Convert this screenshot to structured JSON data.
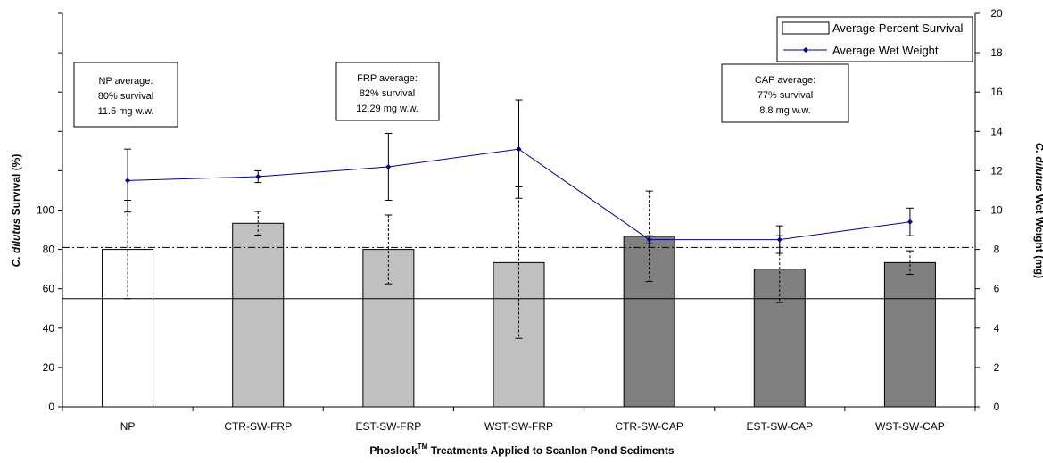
{
  "chart_data": {
    "type": "bar",
    "categories": [
      "NP",
      "CTR-SW-FRP",
      "EST-SW-FRP",
      "WST-SW-FRP",
      "CTR-SW-CAP",
      "EST-SW-CAP",
      "WST-SW-CAP"
    ],
    "bar_colors": [
      "#ffffff",
      "#c0c0c0",
      "#c0c0c0",
      "#c0c0c0",
      "#808080",
      "#808080",
      "#808080"
    ],
    "series": [
      {
        "name": "Average Percent Survival",
        "type": "bar",
        "axis": "left",
        "values": [
          80,
          93.3,
          80,
          73.3,
          86.7,
          70,
          73.3
        ],
        "error": [
          25,
          6,
          17.5,
          38.5,
          23,
          17,
          6
        ]
      },
      {
        "name": "Average Wet Weight",
        "type": "line",
        "axis": "right",
        "color": "#00008b",
        "values": [
          11.5,
          11.7,
          12.2,
          13.1,
          8.5,
          8.5,
          9.4
        ],
        "error": [
          1.6,
          0.3,
          1.7,
          2.5,
          0.2,
          0.7,
          0.7
        ]
      }
    ],
    "reference_lines": [
      {
        "axis": "left",
        "value": 81,
        "style": "dash-dot"
      },
      {
        "axis": "left",
        "value": 55,
        "style": "solid"
      }
    ],
    "x_title_main": "Phoslock",
    "x_title_sup": "TM",
    "x_title_rest": " Treatments Applied to Scanlon Pond Sediments",
    "y_left_title_italic": "C. dilutus",
    "y_left_title_rest": " Survival (%)",
    "y_right_title_italic": "C. dilutus",
    "y_right_title_rest": " Wet Weight (mg)",
    "y_left_range": [
      0,
      200
    ],
    "y_left_ticklabels": [
      "0",
      "20",
      "40",
      "60",
      "80",
      "100"
    ],
    "y_right_range": [
      0,
      20
    ],
    "y_right_ticklabels": [
      "0",
      "2",
      "4",
      "6",
      "8",
      "10",
      "12",
      "14",
      "16",
      "18",
      "20"
    ],
    "legend_position": "top-right",
    "annotations": [
      {
        "title": "NP average:",
        "line1": "80% survival",
        "line2": "11.5 mg w.w."
      },
      {
        "title": "FRP average:",
        "line1": "82% survival",
        "line2": "12.29 mg w.w."
      },
      {
        "title": "CAP average:",
        "line1": "77% survival",
        "line2": "8.8 mg w.w."
      }
    ]
  }
}
